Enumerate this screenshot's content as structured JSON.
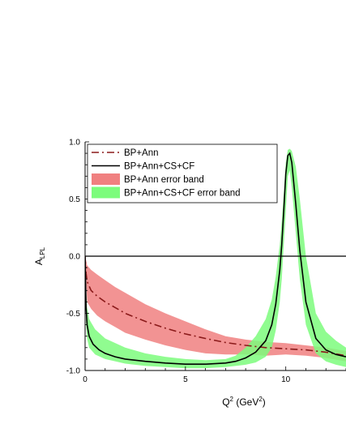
{
  "chart_data": {
    "type": "line",
    "xlabel_base": "Q",
    "xlabel_sup": "2",
    "xlabel_unit_open": " (GeV",
    "xlabel_unit_sup": "2",
    "xlabel_unit_close": ")",
    "ylabel_base": "A",
    "ylabel_sub": "LPL",
    "xlim": [
      0,
      13
    ],
    "ylim": [
      -1.0,
      1.0
    ],
    "x_ticks": [
      0,
      5,
      10
    ],
    "y_ticks": [
      {
        "value": 1.0,
        "label": "1.0"
      },
      {
        "value": 0.5,
        "label": "0.5"
      },
      {
        "value": 0.0,
        "label": "0.0"
      },
      {
        "value": -0.5,
        "label": "-0.5"
      },
      {
        "value": -1.0,
        "label": "-1.0"
      }
    ],
    "reference_line": 0.0,
    "legend_position": "top-right",
    "series": [
      {
        "name": "BP+Ann",
        "style": "dash-dot",
        "color": "#8b1a1a",
        "x": [
          0,
          0.05,
          0.1,
          0.3,
          0.6,
          1,
          1.5,
          2,
          3,
          4,
          5,
          6,
          7,
          8,
          9,
          10,
          11,
          12,
          13
        ],
        "y": [
          0.0,
          -0.15,
          -0.22,
          -0.3,
          -0.35,
          -0.4,
          -0.45,
          -0.5,
          -0.57,
          -0.63,
          -0.68,
          -0.72,
          -0.755,
          -0.78,
          -0.8,
          -0.81,
          -0.82,
          -0.84,
          -0.87
        ]
      },
      {
        "name": "BP+Ann+CS+CF",
        "style": "solid",
        "color": "#000000",
        "x": [
          0,
          0.05,
          0.1,
          0.2,
          0.4,
          0.7,
          1,
          1.5,
          2,
          3,
          4,
          5,
          6,
          7,
          7.5,
          8,
          8.5,
          9,
          9.3,
          9.5,
          9.7,
          9.8,
          9.9,
          10,
          10.1,
          10.2,
          10.3,
          10.5,
          10.7,
          11,
          11.5,
          12,
          12.5,
          13
        ],
        "y": [
          0.0,
          -0.45,
          -0.6,
          -0.7,
          -0.77,
          -0.82,
          -0.85,
          -0.88,
          -0.9,
          -0.92,
          -0.935,
          -0.945,
          -0.945,
          -0.935,
          -0.92,
          -0.89,
          -0.84,
          -0.74,
          -0.6,
          -0.42,
          -0.12,
          0.1,
          0.4,
          0.72,
          0.88,
          0.9,
          0.82,
          0.45,
          0.05,
          -0.4,
          -0.72,
          -0.82,
          -0.86,
          -0.88
        ]
      }
    ],
    "bands": [
      {
        "name": "BP+Ann error band",
        "color": "#f08080",
        "x": [
          0,
          0.1,
          0.3,
          0.6,
          1,
          1.5,
          2,
          3,
          4,
          5,
          6,
          7,
          8,
          9,
          10,
          11,
          12,
          13
        ],
        "upper": [
          0.0,
          -0.08,
          -0.12,
          -0.16,
          -0.21,
          -0.27,
          -0.32,
          -0.42,
          -0.5,
          -0.57,
          -0.64,
          -0.7,
          -0.73,
          -0.75,
          -0.76,
          -0.78,
          -0.8,
          -0.83
        ],
        "lower": [
          0.0,
          -0.4,
          -0.46,
          -0.52,
          -0.57,
          -0.62,
          -0.67,
          -0.73,
          -0.78,
          -0.82,
          -0.85,
          -0.86,
          -0.86,
          -0.87,
          -0.86,
          -0.87,
          -0.89,
          -0.92
        ]
      },
      {
        "name": "BP+Ann+CS+CF error band",
        "color": "#7cfc7c",
        "x": [
          0,
          0.05,
          0.1,
          0.2,
          0.5,
          1,
          2,
          3,
          4,
          5,
          6,
          7,
          7.5,
          8,
          8.5,
          9,
          9.3,
          9.5,
          9.7,
          9.8,
          9.9,
          10,
          10.1,
          10.2,
          10.3,
          10.5,
          10.7,
          11,
          11.5,
          12,
          12.5,
          13
        ],
        "upper": [
          0.0,
          -0.3,
          -0.45,
          -0.55,
          -0.64,
          -0.72,
          -0.8,
          -0.85,
          -0.88,
          -0.9,
          -0.91,
          -0.9,
          -0.87,
          -0.8,
          -0.7,
          -0.55,
          -0.38,
          -0.18,
          0.1,
          0.3,
          0.55,
          0.82,
          0.93,
          0.94,
          0.92,
          0.78,
          0.5,
          0.0,
          -0.5,
          -0.66,
          -0.74,
          -0.8
        ],
        "lower": [
          0.0,
          -0.6,
          -0.72,
          -0.8,
          -0.86,
          -0.9,
          -0.94,
          -0.96,
          -0.97,
          -0.98,
          -0.98,
          -0.97,
          -0.96,
          -0.95,
          -0.93,
          -0.88,
          -0.8,
          -0.65,
          -0.4,
          -0.2,
          0.1,
          0.4,
          0.7,
          0.75,
          0.6,
          0.2,
          -0.2,
          -0.6,
          -0.85,
          -0.92,
          -0.95,
          -0.97
        ]
      }
    ]
  }
}
